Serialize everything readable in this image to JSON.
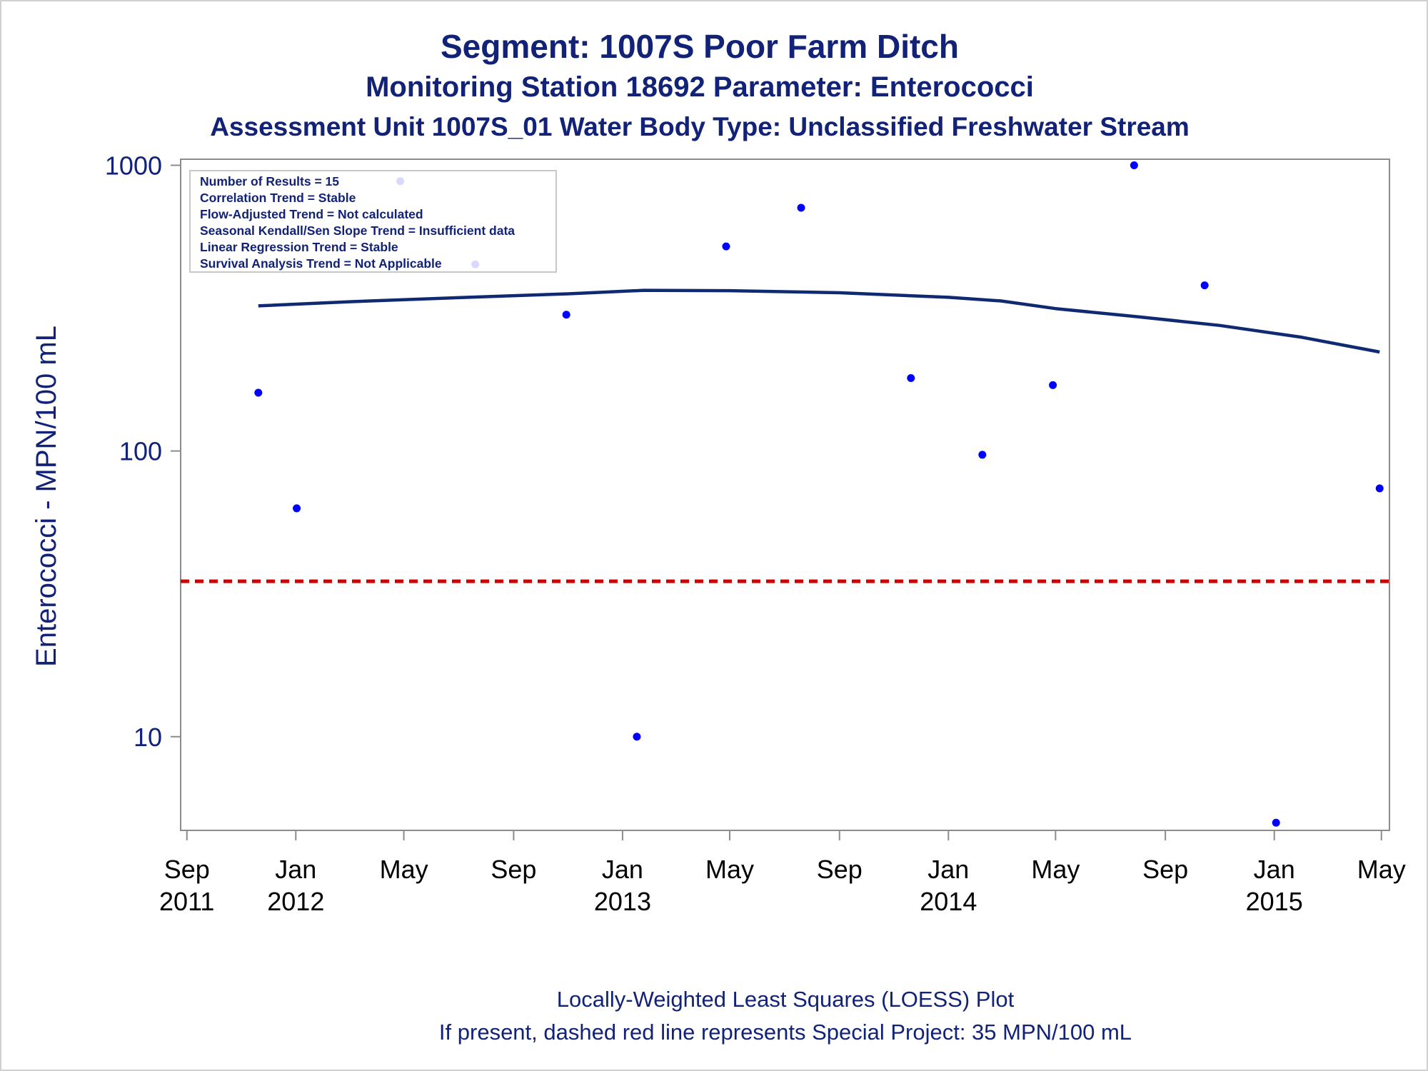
{
  "titles": {
    "line1": "Segment: 1007S  Poor Farm Ditch",
    "line2": "Monitoring Station 18692 Parameter: Enterococci",
    "line3": "Assessment Unit 1007S_01   Water Body Type: Unclassified Freshwater Stream"
  },
  "footer": {
    "line1": "Locally-Weighted Least Squares (LOESS) Plot",
    "line2": "If present, dashed red line represents Special Project: 35 MPN/100 mL"
  },
  "stats_box": [
    "Number of Results = 15",
    "Correlation Trend = Stable",
    "Flow-Adjusted Trend = Not calculated",
    "Seasonal Kendall/Sen Slope Trend = Insufficient data",
    "Linear Regression Trend = Stable",
    "Survival Analysis Trend = Not Applicable"
  ],
  "colors": {
    "points": "#0000ff",
    "loess": "#102a72",
    "reference": "#cc0000",
    "text": "#112277",
    "axis": "#8c8c8c"
  },
  "chart_data": {
    "type": "scatter",
    "ylabel": "Enterococci - MPN/100 mL",
    "xlabel": "",
    "yscale": "log",
    "ylim": [
      4.7,
      1050
    ],
    "xlim": [
      "2011-08-25",
      "2015-05-10"
    ],
    "y_ticks": [
      {
        "value": 10,
        "label": "10"
      },
      {
        "value": 100,
        "label": "100"
      },
      {
        "value": 1000,
        "label": "1000"
      }
    ],
    "x_ticks": [
      {
        "date": "2011-09-01",
        "month": "Sep",
        "year": "2011"
      },
      {
        "date": "2012-01-01",
        "month": "Jan",
        "year": "2012"
      },
      {
        "date": "2012-05-01",
        "month": "May",
        "year": ""
      },
      {
        "date": "2012-09-01",
        "month": "Sep",
        "year": ""
      },
      {
        "date": "2013-01-01",
        "month": "Jan",
        "year": "2013"
      },
      {
        "date": "2013-05-01",
        "month": "May",
        "year": ""
      },
      {
        "date": "2013-09-01",
        "month": "Sep",
        "year": ""
      },
      {
        "date": "2014-01-01",
        "month": "Jan",
        "year": "2014"
      },
      {
        "date": "2014-05-01",
        "month": "May",
        "year": ""
      },
      {
        "date": "2014-09-01",
        "month": "Sep",
        "year": ""
      },
      {
        "date": "2015-01-01",
        "month": "Jan",
        "year": "2015"
      },
      {
        "date": "2015-05-01",
        "month": "May",
        "year": ""
      }
    ],
    "points": [
      {
        "x": "2011-11-20",
        "y": 160
      },
      {
        "x": "2012-01-02",
        "y": 63
      },
      {
        "x": "2012-04-27",
        "y": 880
      },
      {
        "x": "2012-07-20",
        "y": 450
      },
      {
        "x": "2012-10-30",
        "y": 300
      },
      {
        "x": "2013-01-17",
        "y": 10
      },
      {
        "x": "2013-04-27",
        "y": 520
      },
      {
        "x": "2013-07-20",
        "y": 710
      },
      {
        "x": "2013-11-20",
        "y": 180
      },
      {
        "x": "2014-02-08",
        "y": 97
      },
      {
        "x": "2014-04-28",
        "y": 170
      },
      {
        "x": "2014-07-28",
        "y": 1000
      },
      {
        "x": "2014-10-15",
        "y": 380
      },
      {
        "x": "2015-01-03",
        "y": 5
      },
      {
        "x": "2015-04-29",
        "y": 74
      }
    ],
    "loess": [
      {
        "x": "2011-11-20",
        "y": 322
      },
      {
        "x": "2012-03-01",
        "y": 333
      },
      {
        "x": "2012-07-01",
        "y": 344
      },
      {
        "x": "2012-11-01",
        "y": 355
      },
      {
        "x": "2013-01-25",
        "y": 365
      },
      {
        "x": "2013-05-01",
        "y": 364
      },
      {
        "x": "2013-09-01",
        "y": 358
      },
      {
        "x": "2014-01-01",
        "y": 345
      },
      {
        "x": "2014-03-01",
        "y": 335
      },
      {
        "x": "2014-05-01",
        "y": 315
      },
      {
        "x": "2014-08-01",
        "y": 295
      },
      {
        "x": "2014-11-01",
        "y": 275
      },
      {
        "x": "2015-02-01",
        "y": 250
      },
      {
        "x": "2015-04-29",
        "y": 222
      }
    ],
    "reference_line": {
      "y": 35,
      "label": "Special Project: 35 MPN/100 mL",
      "style": "dashed"
    },
    "grid": false,
    "legend": "top-left inset box"
  }
}
